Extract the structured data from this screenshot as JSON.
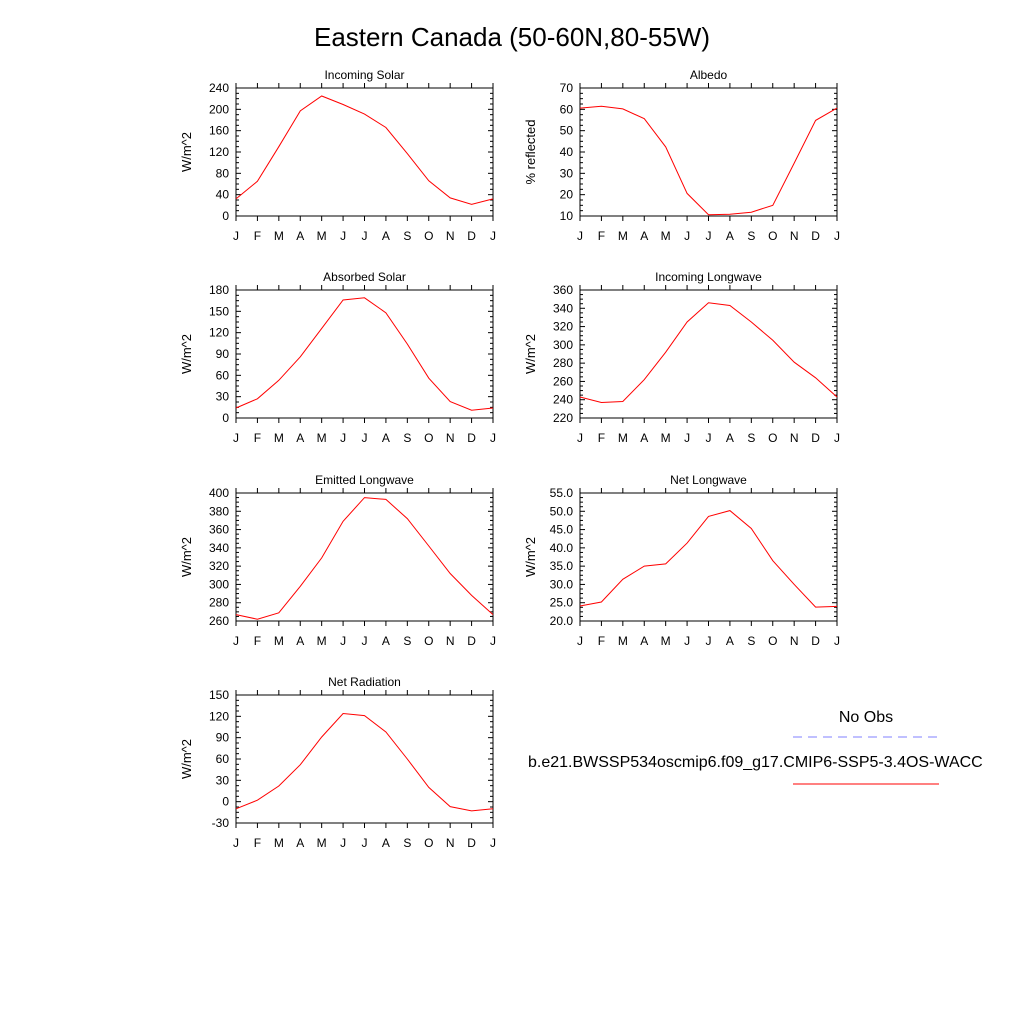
{
  "page_title": "Eastern Canada (50-60N,80-55W)",
  "months": [
    "J",
    "F",
    "M",
    "A",
    "M",
    "J",
    "J",
    "A",
    "S",
    "O",
    "N",
    "D",
    "J"
  ],
  "colors": {
    "model": "#ff0000",
    "obs": "#8080ff",
    "axis": "#000000"
  },
  "legend": {
    "obs_label": "No Obs",
    "model_label": "b.e21.BWSSP534oscmip6.f09_g17.CMIP6-SSP5-3.4OS-WACC"
  },
  "chart_data": [
    {
      "type": "line",
      "title": "Incoming Solar",
      "ylabel": "W/m^2",
      "ylim": [
        0,
        240
      ],
      "yticks": [
        0,
        40,
        80,
        120,
        160,
        200,
        240
      ],
      "ytick_decimals": 0,
      "series": [
        {
          "values": [
            32,
            65,
            130,
            197,
            225,
            209,
            191,
            166,
            117,
            66,
            34,
            22,
            32
          ]
        }
      ]
    },
    {
      "type": "line",
      "title": "Albedo",
      "ylabel": "% reflected",
      "ylim": [
        10,
        70
      ],
      "yticks": [
        10,
        20,
        30,
        40,
        50,
        60,
        70
      ],
      "ytick_decimals": 0,
      "series": [
        {
          "values": [
            60.6,
            61.4,
            60.2,
            55.6,
            42.4,
            20.6,
            10.6,
            10.8,
            11.8,
            15.0,
            34.8,
            54.8,
            60.6
          ]
        }
      ]
    },
    {
      "type": "line",
      "title": "Absorbed Solar",
      "ylabel": "W/m^2",
      "ylim": [
        0,
        180
      ],
      "yticks": [
        0,
        30,
        60,
        90,
        120,
        150,
        180
      ],
      "ytick_decimals": 0,
      "series": [
        {
          "values": [
            14,
            27,
            53,
            86,
            126,
            166,
            169,
            148,
            104,
            56,
            23,
            11,
            14
          ]
        }
      ]
    },
    {
      "type": "line",
      "title": "Incoming Longwave",
      "ylabel": "W/m^2",
      "ylim": [
        220,
        360
      ],
      "yticks": [
        220,
        240,
        260,
        280,
        300,
        320,
        340,
        360
      ],
      "ytick_decimals": 0,
      "series": [
        {
          "values": [
            243,
            237,
            238,
            262,
            292,
            325,
            346,
            343,
            325,
            305,
            281,
            264,
            243
          ]
        }
      ]
    },
    {
      "type": "line",
      "title": "Emitted Longwave",
      "ylabel": "W/m^2",
      "ylim": [
        260,
        400
      ],
      "yticks": [
        260,
        280,
        300,
        320,
        340,
        360,
        380,
        400
      ],
      "ytick_decimals": 0,
      "series": [
        {
          "values": [
            267,
            262,
            269,
            298,
            329,
            369,
            395,
            393,
            372,
            342,
            312,
            288,
            267
          ]
        }
      ]
    },
    {
      "type": "line",
      "title": "Net Longwave",
      "ylabel": "W/m^2",
      "ylim": [
        20,
        55
      ],
      "yticks": [
        20,
        25,
        30,
        35,
        40,
        45,
        50,
        55
      ],
      "ytick_decimals": 1,
      "series": [
        {
          "values": [
            24.1,
            25.2,
            31.4,
            35.0,
            35.6,
            41.3,
            48.6,
            50.2,
            45.3,
            36.5,
            30.0,
            23.8,
            24.0
          ]
        }
      ]
    },
    {
      "type": "line",
      "title": "Net Radiation",
      "ylabel": "W/m^2",
      "ylim": [
        -30,
        150
      ],
      "yticks": [
        -30,
        0,
        30,
        60,
        90,
        120,
        150
      ],
      "ytick_decimals": 0,
      "series": [
        {
          "values": [
            -10,
            2,
            22,
            52,
            91,
            124,
            121,
            98,
            60,
            20,
            -7,
            -13,
            -10
          ]
        }
      ]
    }
  ]
}
